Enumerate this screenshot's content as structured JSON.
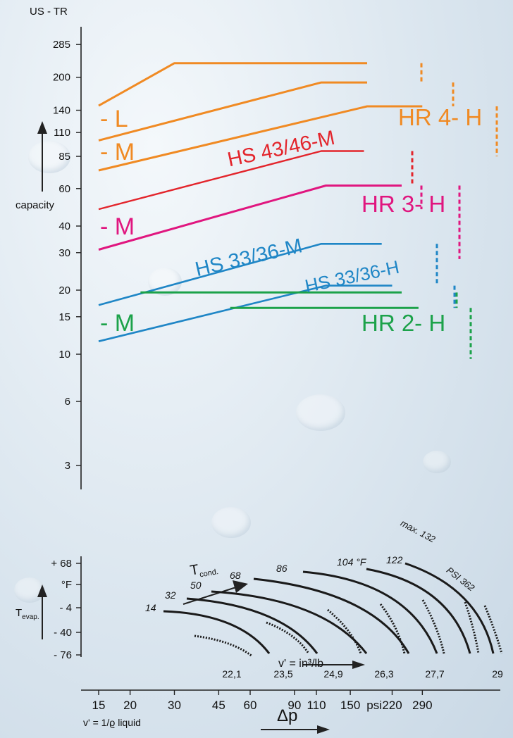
{
  "colors": {
    "hr4": "#f08a23",
    "hs43": "#e3242b",
    "hr3": "#e0167f",
    "hs33": "#1f86c6",
    "hr2": "#1ca24a",
    "axis": "#222222"
  },
  "chart_data": {
    "type": "line",
    "ylabel_unit": "US - TR",
    "ylabel": "capacity",
    "y_scale": "log",
    "y_ticks": [
      285,
      200,
      140,
      110,
      85,
      60,
      40,
      30,
      20,
      15,
      10,
      6,
      3
    ],
    "x_scale": "log",
    "x_ticks": [
      15,
      20,
      30,
      45,
      60,
      90,
      110,
      150,
      220,
      290
    ],
    "x_unit": "psi",
    "xlabel": "Δp",
    "x_sublabel": "v' = 1/ϱ liquid",
    "series": [
      {
        "name": "HR 4- H",
        "points": [
          [
            15,
            147
          ],
          [
            30,
            233
          ],
          [
            118,
            233
          ],
          [
            175,
            233
          ]
        ]
      },
      {
        "name": "HR 4- H",
        "points": [
          [
            15,
            101
          ],
          [
            115,
            189
          ],
          [
            175,
            189
          ]
        ]
      },
      {
        "name": "HR 4- H",
        "points": [
          [
            15,
            73
          ],
          [
            175,
            146
          ],
          [
            290,
            146
          ]
        ]
      },
      {
        "name": "HS 43/46-M",
        "points": [
          [
            15,
            48
          ],
          [
            115,
            90
          ],
          [
            170,
            90
          ]
        ]
      },
      {
        "name": "HR 3- H",
        "points": [
          [
            15,
            31
          ],
          [
            120,
            62
          ],
          [
            240,
            62
          ]
        ]
      },
      {
        "name": "HS 33/36-M",
        "points": [
          [
            15,
            17
          ],
          [
            115,
            33
          ],
          [
            200,
            33
          ]
        ]
      },
      {
        "name": "HS 33/36-H",
        "points": [
          [
            15,
            11.5
          ],
          [
            120,
            21
          ],
          [
            220,
            21
          ]
        ]
      },
      {
        "name": "HR 2- H",
        "points": [
          [
            22,
            19.5
          ],
          [
            240,
            19.5
          ]
        ]
      },
      {
        "name": "HR 2- H",
        "points": [
          [
            50,
            16.5
          ],
          [
            280,
            16.5
          ]
        ]
      }
    ],
    "labels": {
      "hr4_l": "- L",
      "hr4_m": "- M",
      "hr4": "HR 4- H",
      "hs43": "HS 43/46-M",
      "hr3": "HR 3- H",
      "hr3_m": "- M",
      "hs33m": "HS 33/36-M",
      "hs33h": "HS 33/36-H",
      "hr2_m": "- M",
      "hr2": "HR 2- H"
    },
    "lower_panel": {
      "y_ticks": [
        "+ 68",
        "°F",
        "- 4",
        "- 40",
        "- 76"
      ],
      "ylabel": "T",
      "ylabel_sub": "evap.",
      "tcond_label": "T",
      "tcond_sub": "cond.",
      "temp_labels": [
        "14",
        "32",
        "50",
        "68",
        "86",
        "104 °F",
        "122",
        "max. 132"
      ],
      "psi_label": "PSI 362",
      "vprime_label": "v' = in³/lb",
      "vprime_values": [
        "22,1",
        "23,5",
        "24,9",
        "26,3",
        "27,7",
        "29"
      ]
    }
  }
}
